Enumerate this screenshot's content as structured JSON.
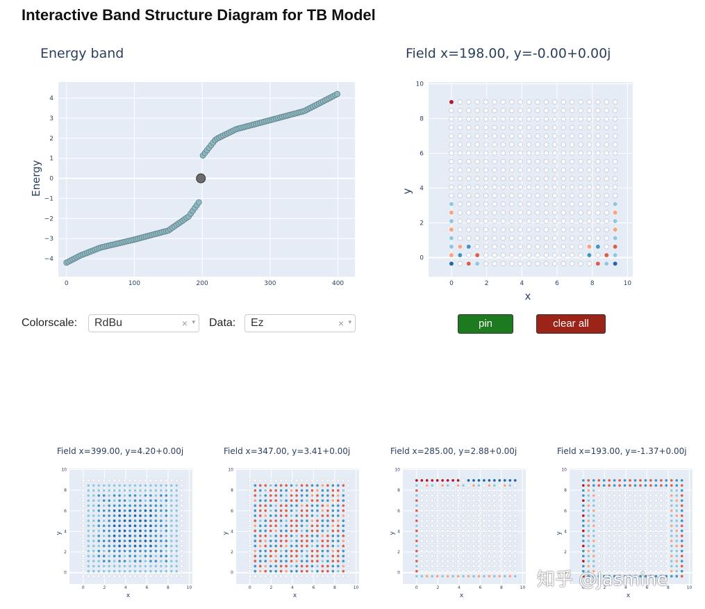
{
  "page": {
    "title": "Interactive Band Structure Diagram for TB Model"
  },
  "controls": {
    "colorscale_label": "Colorscale:",
    "colorscale_value": "RdBu",
    "data_label": "Data:",
    "data_value": "Ez",
    "clear_glyph": "×",
    "arrow_glyph": "▾",
    "pin_label": "pin",
    "clear_all_label": "clear all",
    "pin_color": "#1e7a1e",
    "clear_color": "#9c2318"
  },
  "watermark": "知乎 @Jasmine",
  "chart_data": [
    {
      "type": "scatter",
      "title": "Energy band",
      "xlabel": "",
      "ylabel": "Energy",
      "xlim": [
        -12,
        425
      ],
      "ylim": [
        -4.9,
        4.8
      ],
      "xticks": [
        "0",
        "100",
        "200",
        "300",
        "400"
      ],
      "yticks": [
        "4",
        "3",
        "2",
        "1",
        "0",
        "−1",
        "−2",
        "−3",
        "−4"
      ],
      "n_points": 400,
      "band_samples_x": [
        0,
        20,
        50,
        100,
        150,
        180,
        197,
        198,
        200,
        220,
        250,
        300,
        350,
        399
      ],
      "band_samples_y": [
        -4.2,
        -3.85,
        -3.45,
        -3.05,
        -2.6,
        -1.9,
        -1.1,
        0,
        1.1,
        1.95,
        2.45,
        2.9,
        3.35,
        4.2
      ],
      "selected_point": {
        "x": 198,
        "y": 0
      },
      "marker_color": "#8fb8c0"
    },
    {
      "type": "scatter",
      "title": "Field x=198.00, y=-0.00+0.00j",
      "xlabel": "x",
      "ylabel": "y",
      "xlim": [
        -1.3,
        10.3
      ],
      "ylim": [
        -1.1,
        10.1
      ],
      "xticks": [
        "0",
        "2",
        "4",
        "6",
        "8",
        "10"
      ],
      "yticks": [
        "0",
        "2",
        "4",
        "6",
        "8",
        "10"
      ],
      "pattern": "edge",
      "colorscale": "RdBu"
    },
    {
      "type": "scatter",
      "title": "Field x=399.00, y=4.20+0.00j",
      "xlabel": "x",
      "ylabel": "y",
      "xticks": [
        "0",
        "2",
        "4",
        "6",
        "8",
        "10"
      ],
      "yticks": [
        "0",
        "2",
        "4",
        "6",
        "8",
        "10"
      ],
      "pattern": "bulk-blue"
    },
    {
      "type": "scatter",
      "title": "Field x=347.00, y=3.41+0.00j",
      "xlabel": "x",
      "ylabel": "y",
      "xticks": [
        "0",
        "2",
        "4",
        "6",
        "8",
        "10"
      ],
      "yticks": [
        "0",
        "2",
        "4",
        "6",
        "8",
        "10"
      ],
      "pattern": "bulk-mixed"
    },
    {
      "type": "scatter",
      "title": "Field x=285.00, y=2.88+0.00j",
      "xlabel": "x",
      "ylabel": "y",
      "xticks": [
        "0",
        "2",
        "4",
        "6",
        "8",
        "10"
      ],
      "yticks": [
        "0",
        "2",
        "4",
        "6",
        "8",
        "10"
      ],
      "pattern": "edge-top-left"
    },
    {
      "type": "scatter",
      "title": "Field x=193.00, y=-1.37+0.00j",
      "xlabel": "x",
      "ylabel": "y",
      "xticks": [
        "0",
        "2",
        "4",
        "6",
        "8",
        "10"
      ],
      "yticks": [
        "0",
        "2",
        "4",
        "6",
        "8",
        "10"
      ],
      "pattern": "edge-mixed"
    }
  ]
}
